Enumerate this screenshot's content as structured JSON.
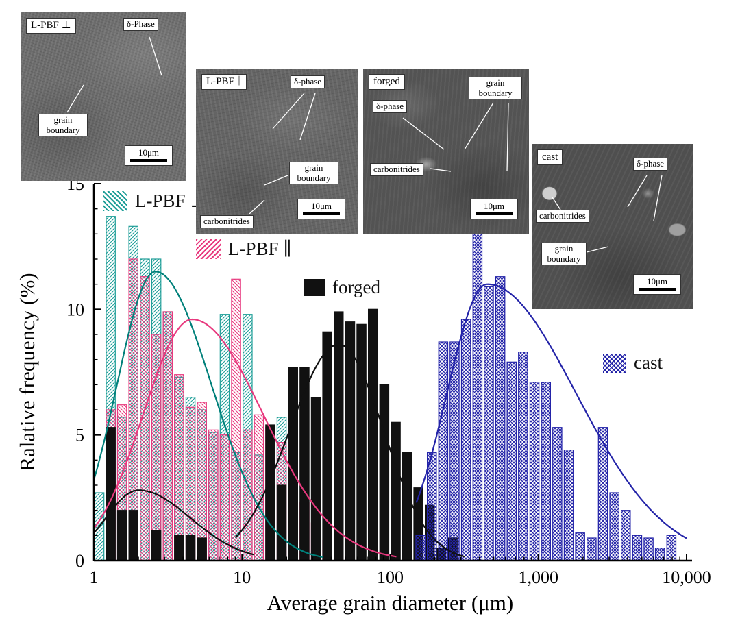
{
  "chart_data": {
    "type": "bar",
    "title": "",
    "xlabel": "Average grain diameter (μm)",
    "ylabel": "Ralative frequency (%)",
    "x_scale": "log",
    "xlim": [
      1,
      10000
    ],
    "ylim": [
      0,
      15
    ],
    "grid": false,
    "legend_position": "inside",
    "bins_per_decade": 13,
    "x_tick_labels": [
      {
        "v": 1,
        "label": "1"
      },
      {
        "v": 10,
        "label": "10"
      },
      {
        "v": 100,
        "label": "100"
      },
      {
        "v": 1000,
        "label": "1,000"
      },
      {
        "v": 10000,
        "label": "10,000"
      }
    ],
    "y_tick_labels": [
      {
        "v": 0,
        "label": "0"
      },
      {
        "v": 5,
        "label": "5"
      },
      {
        "v": 10,
        "label": "10"
      },
      {
        "v": 15,
        "label": "15"
      }
    ],
    "series": [
      {
        "name": "L-PBF-perpendicular",
        "label": "L-PBF ⊥",
        "color": "#1f9e98",
        "pattern": "diag",
        "x": [
          1.09,
          1.3,
          1.55,
          1.85,
          2.21,
          2.64,
          3.15,
          3.76,
          4.49,
          5.36,
          6.4,
          7.64,
          9.12,
          10.9,
          13.0,
          15.5,
          18.5,
          22.1
        ],
        "values": [
          2.7,
          13.7,
          5.7,
          13.3,
          12.0,
          12.0,
          9.9,
          7.3,
          6.5,
          6.0,
          5.1,
          9.8,
          4.3,
          9.8,
          4.2,
          2.9,
          5.7,
          1.0
        ]
      },
      {
        "name": "L-PBF-parallel",
        "label": "L-PBF ∥",
        "color": "#e8397e",
        "pattern": "diag2",
        "x": [
          1.3,
          1.55,
          1.85,
          2.21,
          2.64,
          3.15,
          3.76,
          4.49,
          5.36,
          6.4,
          7.64,
          9.12,
          10.9,
          13.0,
          15.5,
          18.5,
          22.1,
          26.4,
          31.5,
          37.6
        ],
        "values": [
          6.0,
          6.2,
          12.0,
          11.3,
          9.0,
          9.9,
          7.4,
          6.1,
          6.3,
          5.2,
          5.0,
          11.2,
          5.2,
          5.8,
          5.3,
          4.7,
          4.6,
          2.3,
          1.5,
          0.8
        ]
      },
      {
        "name": "forged",
        "label": "forged",
        "color": "#111111",
        "pattern": "solid",
        "x": [
          1.3,
          1.55,
          1.85,
          2.64,
          3.76,
          4.49,
          5.36,
          15.5,
          18.5,
          22.1,
          26.4,
          31.5,
          37.6,
          44.9,
          53.6,
          64.0,
          76.4,
          91.2,
          109,
          130,
          155,
          185,
          221,
          264
        ],
        "values": [
          5.3,
          2.0,
          2.0,
          1.2,
          1.0,
          1.0,
          0.9,
          5.4,
          3.0,
          7.7,
          7.7,
          6.5,
          9.1,
          9.9,
          9.5,
          9.4,
          10.0,
          7.0,
          5.5,
          4.3,
          2.9,
          2.2,
          0.5,
          0.9
        ]
      },
      {
        "name": "cast",
        "label": "cast",
        "color": "#2323a8",
        "pattern": "cross",
        "x": [
          160,
          191,
          228,
          272,
          325,
          388,
          463,
          553,
          660,
          788,
          941,
          1124,
          1342,
          1602,
          1913,
          2284,
          2727,
          3256,
          3887,
          4641,
          5541,
          6615,
          7898
        ],
        "values": [
          1.0,
          4.3,
          8.7,
          8.7,
          9.6,
          13.0,
          10.9,
          11.3,
          7.9,
          8.3,
          7.1,
          7.1,
          5.3,
          4.4,
          1.1,
          0.9,
          5.3,
          2.7,
          2.0,
          1.0,
          0.9,
          0.5,
          1.0
        ]
      }
    ],
    "fit_curves": [
      {
        "name": "L-PBF-perpendicular-fit",
        "color": "#00807a",
        "peak": 11.5,
        "mode": 2.6,
        "sigma_left": 0.26,
        "sigma_right": 0.38,
        "range": [
          1,
          35
        ]
      },
      {
        "name": "L-PBF-parallel-fit",
        "color": "#e8397e",
        "peak": 9.6,
        "mode": 4.6,
        "sigma_left": 0.33,
        "sigma_right": 0.48,
        "range": [
          1,
          110
        ]
      },
      {
        "name": "forged-fine-fit",
        "color": "#111111",
        "peak": 2.8,
        "mode": 2.0,
        "sigma_left": 0.22,
        "sigma_right": 0.35,
        "range": [
          1,
          12
        ]
      },
      {
        "name": "forged-fit",
        "color": "#111111",
        "peak": 8.6,
        "mode": 45,
        "sigma_left": 0.33,
        "sigma_right": 0.3,
        "range": [
          9,
          320
        ]
      },
      {
        "name": "cast-fit",
        "color": "#2323a8",
        "peak": 11.0,
        "mode": 450,
        "sigma_left": 0.27,
        "sigma_right": 0.6,
        "range": [
          150,
          10000
        ]
      }
    ]
  },
  "legend": [
    {
      "label": "L-PBF ⊥"
    },
    {
      "label": "L-PBF ∥"
    },
    {
      "label": "forged"
    },
    {
      "label": "cast"
    }
  ],
  "insets": [
    {
      "title": "L-PBF ⊥",
      "phase": "δ-Phase",
      "grain": "grain boundary",
      "scale": "10μm"
    },
    {
      "title": "L-PBF ∥",
      "phase": "δ-phase",
      "grain": "grain boundary",
      "carbo": "carbonitrides",
      "scale": "10μm"
    },
    {
      "title": "forged",
      "phase": "δ-phase",
      "grain": "grain boundary",
      "carbo": "carbonitrides",
      "scale": "10μm"
    },
    {
      "title": "cast",
      "phase": "δ-phase",
      "grain": "grain boundary",
      "carbo": "carbonitrides",
      "scale": "10μm"
    }
  ]
}
